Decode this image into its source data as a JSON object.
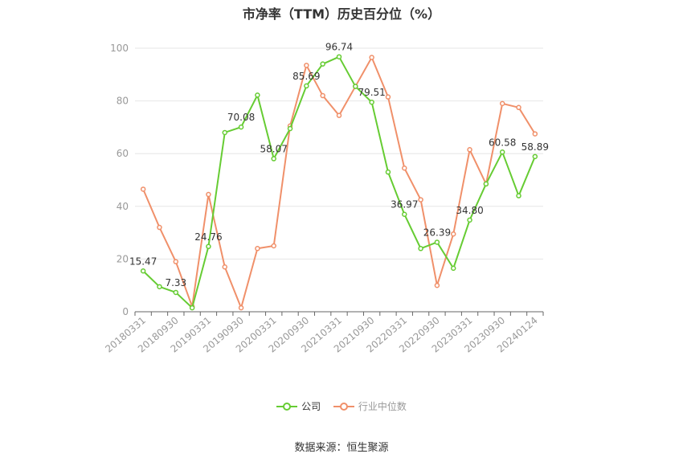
{
  "title": "市净率（TTM）历史百分位（%）",
  "source": "数据来源：恒生聚源",
  "colors": {
    "company": "#66cc33",
    "industry": "#f0906a",
    "grid": "#e6e6e6",
    "axis": "#666666",
    "tick_text": "#999999"
  },
  "chart_data": {
    "type": "line",
    "title": "市净率（TTM）历史百分位（%）",
    "ylim": [
      0,
      100
    ],
    "yticks": [
      0,
      20,
      40,
      60,
      80,
      100
    ],
    "x_tick_labels": [
      "20180331",
      "20180930",
      "20190331",
      "20190930",
      "20200331",
      "20200930",
      "20210331",
      "20210930",
      "20220331",
      "20220930",
      "20230331",
      "20230930",
      "20240124"
    ],
    "x": [
      0,
      1,
      2,
      3,
      4,
      5,
      6,
      7,
      8,
      9,
      10,
      11,
      12,
      13,
      14,
      15,
      16,
      17,
      18,
      19,
      20,
      21,
      22,
      23,
      24
    ],
    "series": [
      {
        "name": "公司",
        "values": [
          15.47,
          9.5,
          7.33,
          1.5,
          24.76,
          68.0,
          70.08,
          82.2,
          58.07,
          69.5,
          85.69,
          94.0,
          96.74,
          85.5,
          79.51,
          53.0,
          36.97,
          24.0,
          26.39,
          16.5,
          34.8,
          48.5,
          60.58,
          44.0,
          58.89
        ],
        "data_labels": [
          {
            "index": 0,
            "text": "15.47"
          },
          {
            "index": 2,
            "text": "7.33"
          },
          {
            "index": 4,
            "text": "24.76"
          },
          {
            "index": 6,
            "text": "70.08"
          },
          {
            "index": 8,
            "text": "58.07"
          },
          {
            "index": 10,
            "text": "85.69"
          },
          {
            "index": 12,
            "text": "96.74"
          },
          {
            "index": 14,
            "text": "79.51"
          },
          {
            "index": 16,
            "text": "36.97"
          },
          {
            "index": 18,
            "text": "26.39"
          },
          {
            "index": 20,
            "text": "34.80"
          },
          {
            "index": 22,
            "text": "60.58"
          },
          {
            "index": 24,
            "text": "58.89"
          }
        ]
      },
      {
        "name": "行业中位数",
        "values": [
          46.5,
          32.0,
          19.0,
          2.0,
          44.5,
          17.0,
          1.5,
          24.0,
          25.0,
          70.5,
          93.5,
          82.0,
          74.5,
          85.5,
          96.5,
          81.5,
          54.5,
          42.5,
          10.0,
          29.5,
          61.5,
          48.5,
          79.0,
          77.5,
          67.5
        ]
      }
    ],
    "legend_position": "bottom-center",
    "grid": true
  }
}
